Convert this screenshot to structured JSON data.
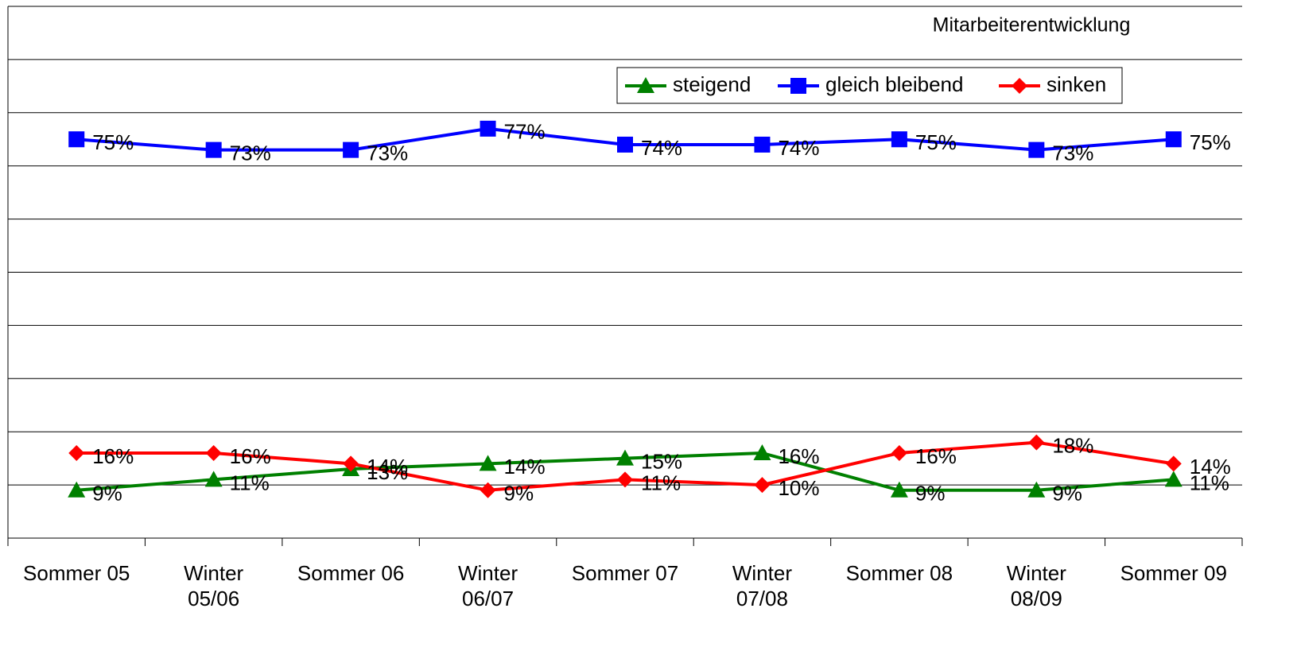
{
  "chart_data": {
    "type": "line",
    "title": "Mitarbeiterentwicklung",
    "categories": [
      "Sommer 05",
      "Winter 05/06",
      "Sommer 06",
      "Winter 06/07",
      "Sommer 07",
      "Winter 07/08",
      "Sommer 08",
      "Winter 08/09",
      "Sommer 09"
    ],
    "series": [
      {
        "name": "steigend",
        "color": "#008000",
        "marker": "triangle",
        "values": [
          9,
          11,
          13,
          14,
          15,
          16,
          9,
          9,
          11
        ],
        "value_labels": [
          "9%",
          "11%",
          "13%",
          "14%",
          "15%",
          "16%",
          "9%",
          "9%",
          "11%"
        ]
      },
      {
        "name": "gleich bleibend",
        "color": "#0000ff",
        "marker": "square",
        "values": [
          75,
          73,
          73,
          77,
          74,
          74,
          75,
          73,
          75
        ],
        "value_labels": [
          "75%",
          "73%",
          "73%",
          "77%",
          "74%",
          "74%",
          "75%",
          "73%",
          "75%"
        ]
      },
      {
        "name": "sinken",
        "color": "#ff0000",
        "marker": "diamond",
        "values": [
          16,
          16,
          14,
          9,
          11,
          10,
          16,
          18,
          14
        ],
        "value_labels": [
          "16%",
          "16%",
          "14%",
          "9%",
          "11%",
          "10%",
          "16%",
          "18%",
          "14%"
        ]
      }
    ],
    "ylim": [
      0,
      100
    ],
    "yticks": [
      0,
      10,
      20,
      30,
      40,
      50,
      60,
      70,
      80,
      90,
      100
    ],
    "grid": true
  }
}
